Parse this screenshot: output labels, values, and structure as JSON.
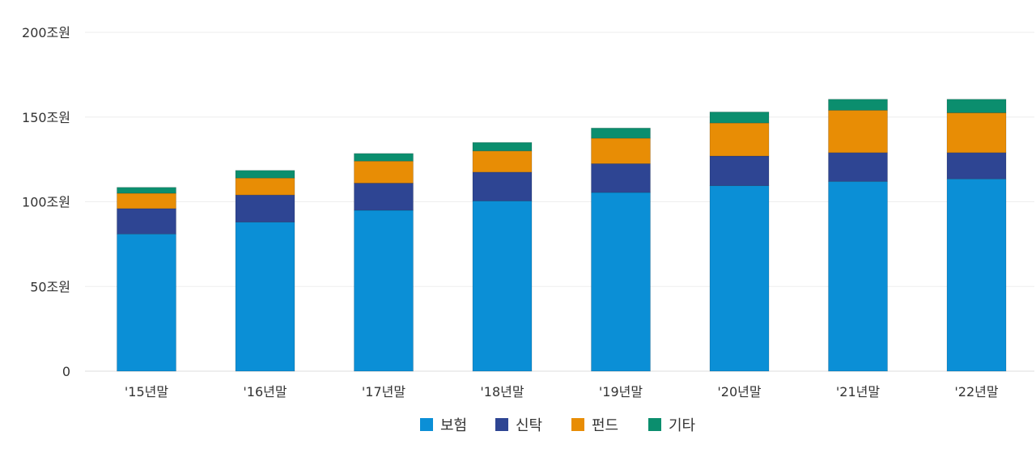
{
  "chart_data": {
    "type": "bar",
    "stacked": true,
    "categories": [
      "'15년말",
      "'16년말",
      "'17년말",
      "'18년말",
      "'19년말",
      "'20년말",
      "'21년말",
      "'22년말"
    ],
    "series": [
      {
        "name": "보험",
        "color": "#0b8fd6",
        "values": [
          81,
          88,
          95,
          100.5,
          105.5,
          109.5,
          112,
          113.5
        ]
      },
      {
        "name": "신탁",
        "color": "#2e4593",
        "values": [
          15,
          16,
          16,
          17,
          17,
          17.5,
          17,
          15.5
        ]
      },
      {
        "name": "펀드",
        "color": "#e88d05",
        "values": [
          9,
          10,
          13,
          12.5,
          15,
          19.5,
          25,
          23.5
        ]
      },
      {
        "name": "기타",
        "color": "#0b8e6e",
        "values": [
          3.5,
          4.5,
          4.5,
          5,
          6,
          6.5,
          6.5,
          8
        ]
      }
    ],
    "y_ticks": [
      {
        "value": 0,
        "label": "0"
      },
      {
        "value": 50,
        "label": "50조원"
      },
      {
        "value": 100,
        "label": "100조원"
      },
      {
        "value": 150,
        "label": "150조원"
      },
      {
        "value": 200,
        "label": "200조원"
      }
    ],
    "ylim": [
      0,
      200
    ],
    "grid": true,
    "legend_position": "bottom-center"
  }
}
